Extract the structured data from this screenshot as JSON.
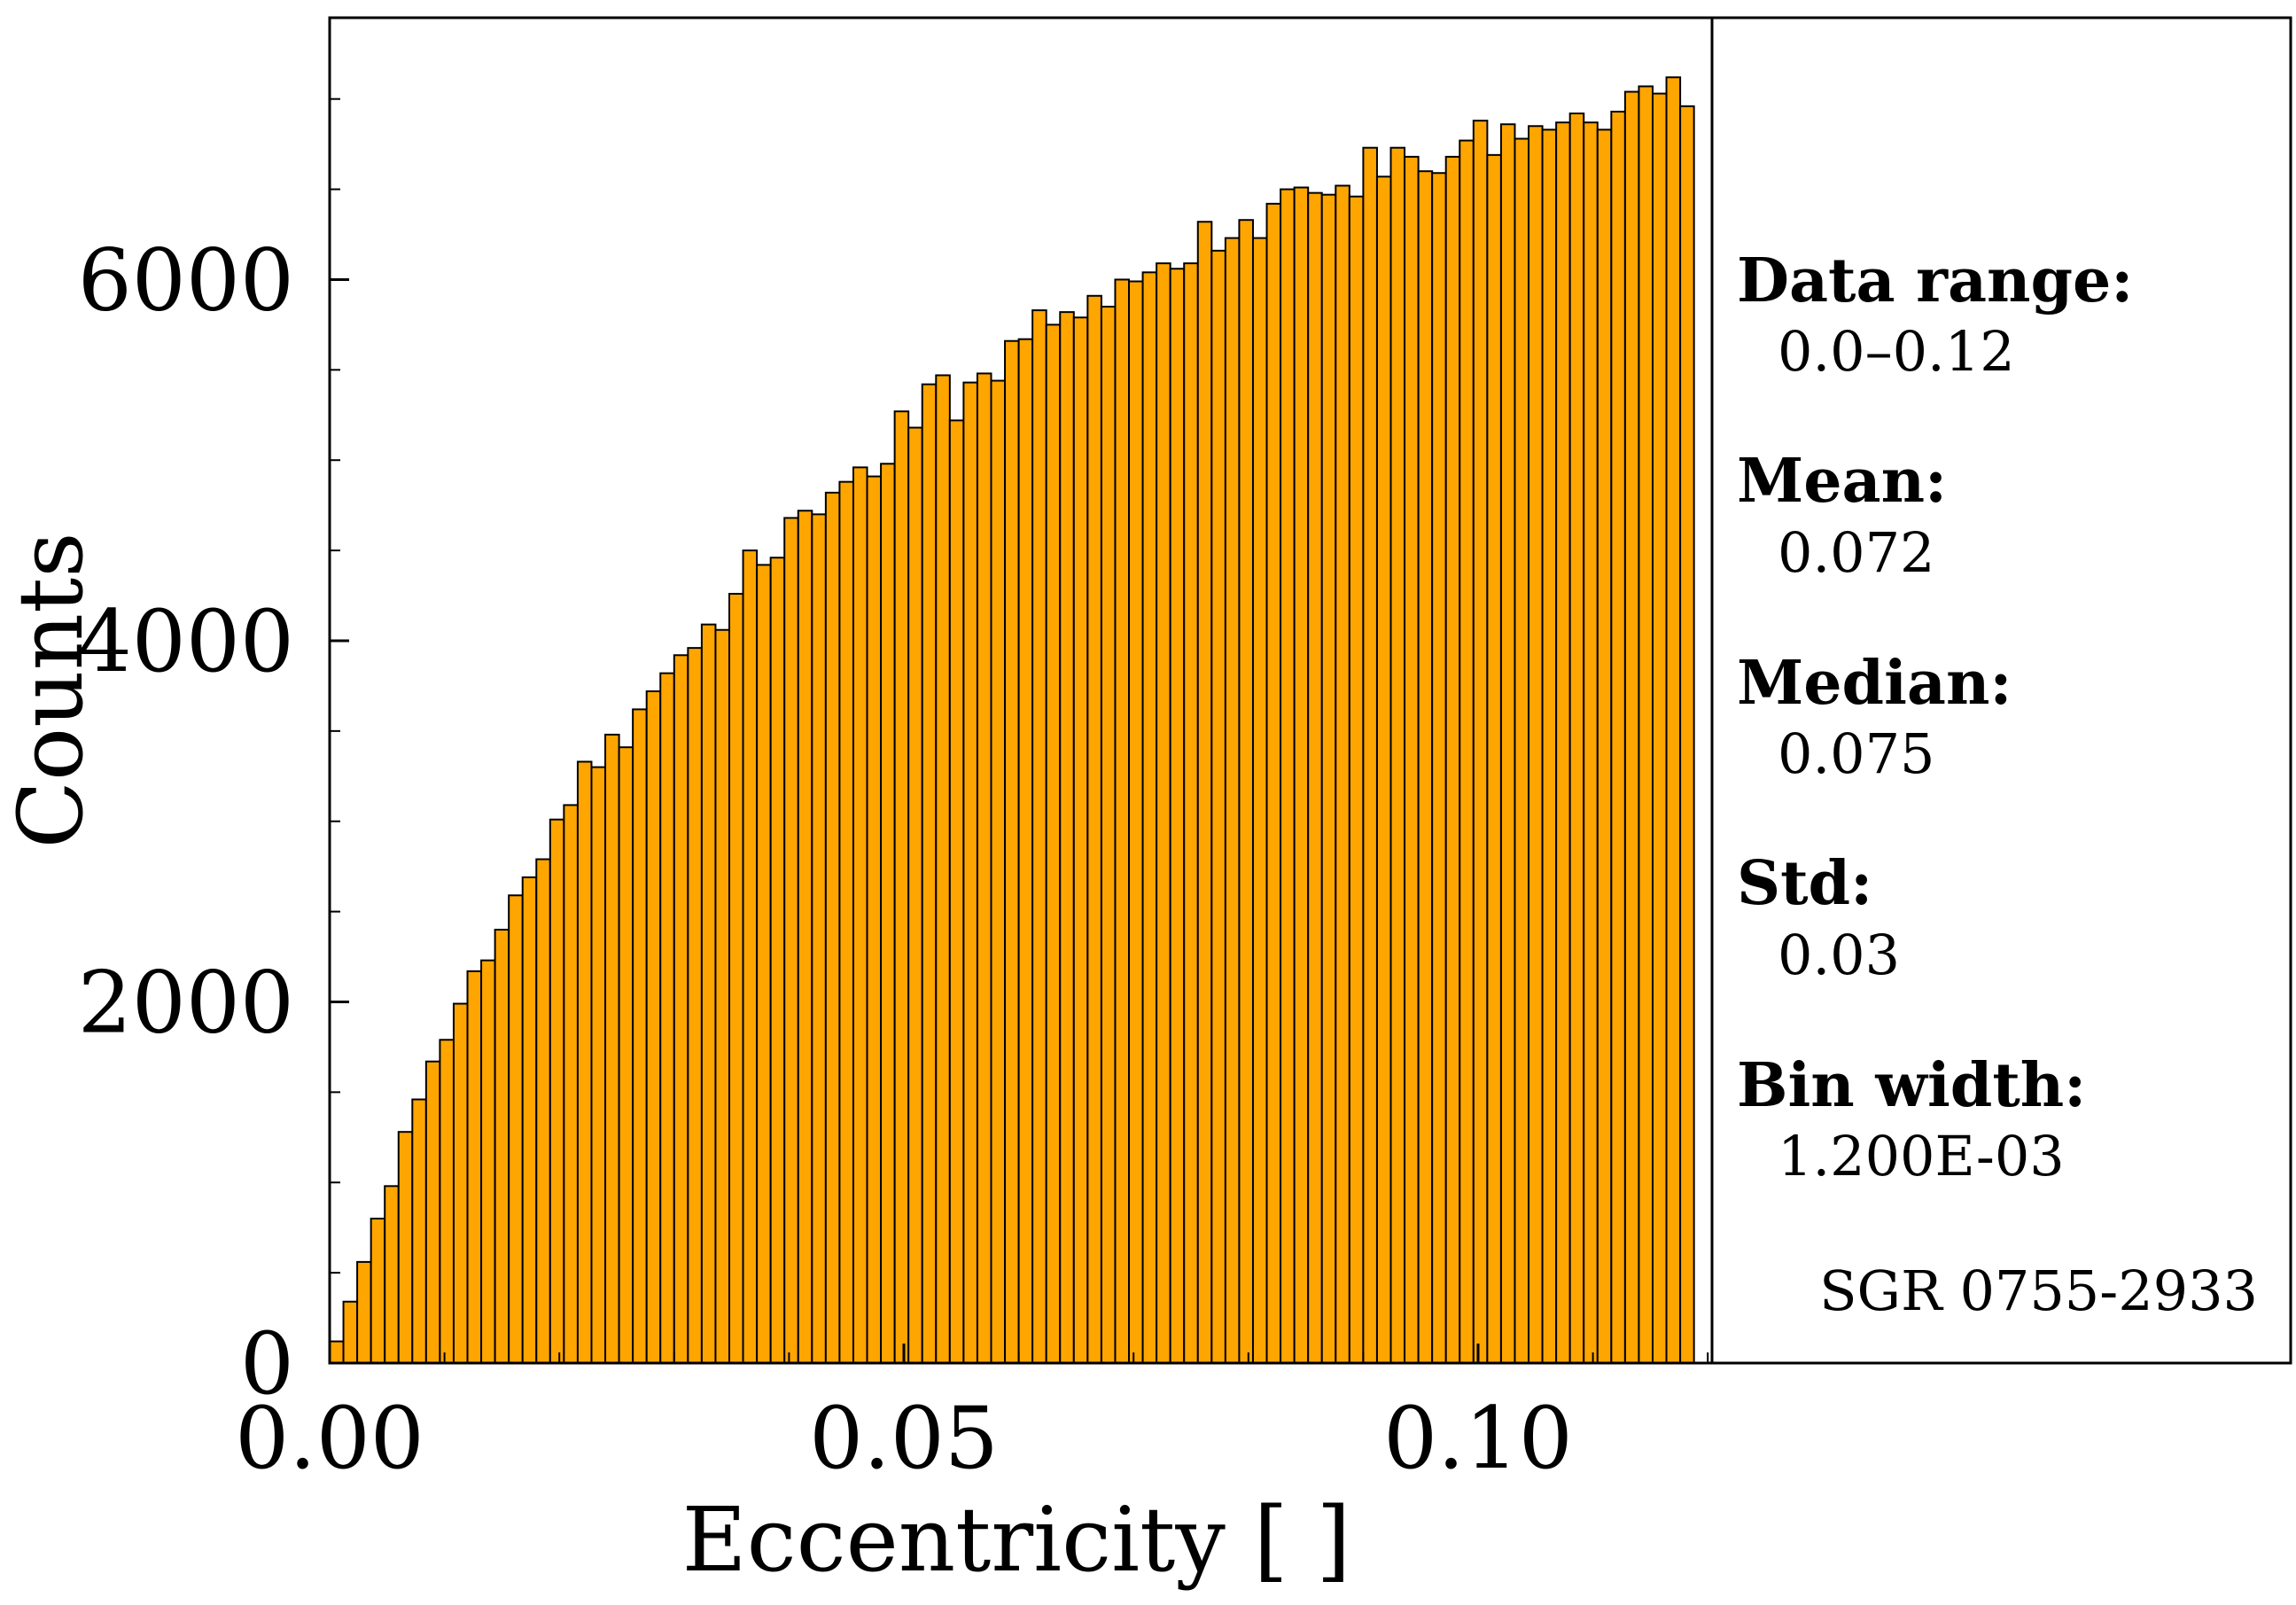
{
  "chart_data": {
    "type": "bar",
    "xlabel": "Eccentricity [ ]",
    "ylabel": "Counts",
    "xlim": [
      0.0,
      0.12
    ],
    "ylim": [
      0,
      7450
    ],
    "x_ticks": [
      "0.00",
      "0.05",
      "0.10"
    ],
    "x_tick_values": [
      0.0,
      0.05,
      0.1
    ],
    "y_ticks": [
      "0",
      "2000",
      "4000",
      "6000"
    ],
    "y_tick_values": [
      0,
      2000,
      4000,
      6000
    ],
    "grid": false,
    "bar_color": "#ffa500",
    "edge_color": "#000000",
    "bin_start": 0.0,
    "bin_width": 0.0012,
    "values": [
      120,
      340,
      560,
      800,
      980,
      1280,
      1460,
      1670,
      1790,
      1990,
      2170,
      2230,
      2400,
      2590,
      2690,
      2790,
      3010,
      3090,
      3330,
      3300,
      3480,
      3410,
      3620,
      3720,
      3820,
      3920,
      3960,
      4090,
      4060,
      4260,
      4500,
      4420,
      4460,
      4680,
      4720,
      4700,
      4820,
      4880,
      4960,
      4910,
      4980,
      5270,
      5180,
      5420,
      5470,
      5220,
      5430,
      5480,
      5440,
      5660,
      5670,
      5830,
      5750,
      5820,
      5790,
      5910,
      5850,
      6000,
      5990,
      6040,
      6090,
      6060,
      6090,
      6320,
      6160,
      6230,
      6330,
      6230,
      6420,
      6500,
      6510,
      6480,
      6470,
      6520,
      6460,
      6730,
      6570,
      6730,
      6680,
      6600,
      6590,
      6680,
      6770,
      6880,
      6690,
      6860,
      6780,
      6850,
      6830,
      6870,
      6920,
      6870,
      6830,
      6930,
      7040,
      7070,
      7030,
      7120,
      6960
    ],
    "legend": null
  },
  "stats_panel": {
    "items": [
      {
        "label": "Data range:",
        "value": "0.0–0.12"
      },
      {
        "label": "Mean:",
        "value": "0.072"
      },
      {
        "label": "Median:",
        "value": "0.075"
      },
      {
        "label": "Std:",
        "value": "0.03"
      },
      {
        "label": "Bin width:",
        "value": "1.200E-03"
      }
    ],
    "source": "SGR 0755-2933"
  }
}
